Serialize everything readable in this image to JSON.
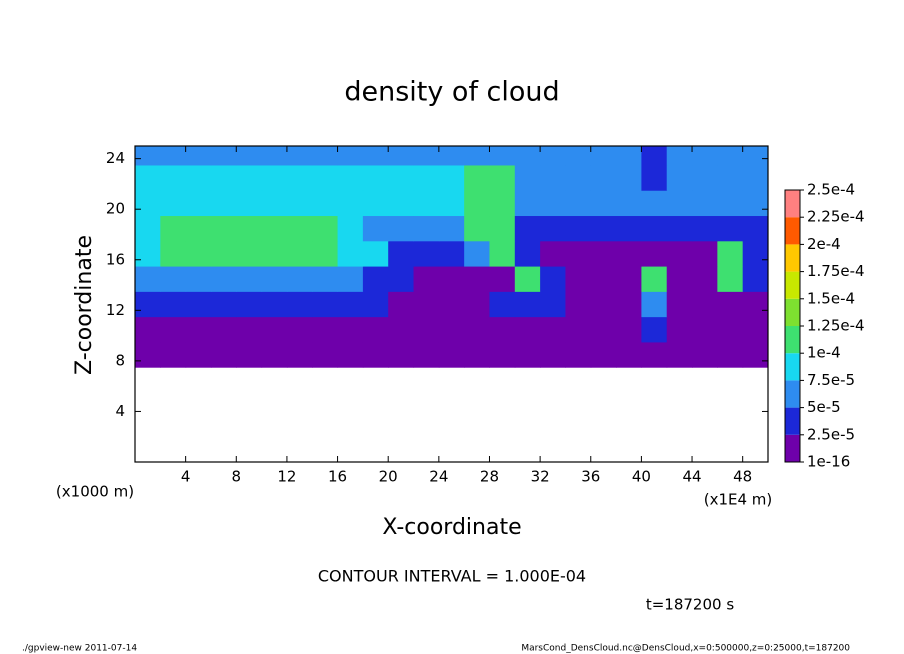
{
  "chart_data": {
    "type": "contour",
    "title": "density of cloud",
    "xlabel": "X-coordinate",
    "ylabel": "Z-coordinate",
    "x_unit": "(x1E4 m)",
    "y_unit": "(x1000 m)",
    "annotation": "CONTOUR INTERVAL = 1.000E-04",
    "time": "t=187200 s",
    "footer_left": "./gpview-new  2011-07-14",
    "footer_right": "MarsCond_DensCloud.nc@DensCloud,x=0:500000,z=0:25000,t=187200",
    "xlim": [
      0,
      50
    ],
    "ylim": [
      0,
      25
    ],
    "xticks": [
      4,
      8,
      12,
      16,
      20,
      24,
      28,
      32,
      36,
      40,
      44,
      48
    ],
    "yticks": [
      4,
      8,
      12,
      16,
      20,
      24
    ],
    "x": [
      1,
      3,
      5,
      7,
      9,
      11,
      13,
      15,
      17,
      19,
      21,
      23,
      25,
      27,
      29,
      31,
      33,
      35,
      37,
      39,
      41,
      43,
      45,
      47,
      49
    ],
    "y": [
      8.5,
      10.5,
      12.5,
      14.5,
      16.5,
      18.5,
      20.5,
      22.5,
      24.5
    ],
    "z": [
      [
        5e-06,
        5e-06,
        5e-06,
        5e-06,
        5e-06,
        5e-06,
        5e-06,
        5e-06,
        5e-06,
        5e-06,
        5e-06,
        5e-06,
        5e-06,
        5e-06,
        5e-06,
        1.5e-05,
        5e-06,
        5e-06,
        5e-06,
        1.5e-05,
        5e-06,
        5e-06,
        5e-06,
        5e-06,
        5e-06
      ],
      [
        5e-06,
        5e-06,
        5e-06,
        5e-06,
        5e-06,
        5e-06,
        5e-06,
        5e-06,
        5e-06,
        5e-06,
        5e-06,
        5e-06,
        5e-06,
        5e-06,
        2e-05,
        2e-05,
        2e-05,
        5e-06,
        5e-06,
        5e-06,
        3e-05,
        5e-06,
        5e-06,
        5e-06,
        5e-06
      ],
      [
        3.5e-05,
        3.5e-05,
        3.5e-05,
        3.5e-05,
        3.5e-05,
        3.5e-05,
        3.5e-05,
        3.5e-05,
        3.5e-05,
        3.5e-05,
        2e-05,
        2e-05,
        2e-05,
        2e-05,
        3e-05,
        3e-05,
        3e-05,
        1e-05,
        1e-05,
        1e-05,
        6e-05,
        1e-05,
        1e-05,
        1e-05,
        1e-05
      ],
      [
        7e-05,
        7e-05,
        7e-05,
        7e-05,
        7e-05,
        7e-05,
        7e-05,
        7e-05,
        7e-05,
        4e-05,
        4e-05,
        1e-05,
        1e-05,
        1e-05,
        1e-05,
        0.00011,
        3e-05,
        1e-05,
        1e-05,
        1e-05,
        0.000105,
        2e-05,
        2e-05,
        0.000105,
        3e-05
      ],
      [
        8e-05,
        0.000105,
        0.000105,
        0.000105,
        0.000105,
        0.000105,
        0.000105,
        0.000105,
        8e-05,
        8e-05,
        4e-05,
        4e-05,
        4e-05,
        6e-05,
        0.000105,
        3e-05,
        1e-05,
        1e-05,
        1e-05,
        1e-05,
        1e-05,
        1e-05,
        1e-05,
        0.000105,
        4e-05
      ],
      [
        8.5e-05,
        0.000105,
        0.000105,
        0.000105,
        0.000105,
        0.000105,
        0.000105,
        0.000105,
        8.5e-05,
        7e-05,
        7e-05,
        7e-05,
        7e-05,
        0.00011,
        0.00011,
        4.5e-05,
        4.5e-05,
        4.5e-05,
        4.5e-05,
        3e-05,
        3e-05,
        3e-05,
        3e-05,
        3e-05,
        3e-05
      ],
      [
        8.5e-05,
        8.5e-05,
        8.5e-05,
        9.5e-05,
        9.5e-05,
        9.5e-05,
        9.5e-05,
        9.5e-05,
        8e-05,
        8e-05,
        8e-05,
        8e-05,
        8e-05,
        0.000105,
        0.000105,
        7e-05,
        7e-05,
        7e-05,
        7e-05,
        7e-05,
        7e-05,
        7e-05,
        7e-05,
        7e-05,
        7e-05
      ],
      [
        8e-05,
        8e-05,
        8e-05,
        8e-05,
        8e-05,
        8e-05,
        8e-05,
        8e-05,
        8e-05,
        8e-05,
        8e-05,
        8e-05,
        8e-05,
        0.0001,
        0.0001,
        7e-05,
        7e-05,
        7e-05,
        7e-05,
        7e-05,
        4e-05,
        7e-05,
        7e-05,
        7e-05,
        7e-05
      ],
      [
        6.5e-05,
        6.5e-05,
        6.5e-05,
        6.5e-05,
        6.5e-05,
        6.5e-05,
        6.5e-05,
        6.5e-05,
        6.5e-05,
        6.5e-05,
        6.5e-05,
        6.5e-05,
        6.5e-05,
        6.5e-05,
        6.5e-05,
        6.5e-05,
        6.5e-05,
        6.5e-05,
        6.5e-05,
        6.5e-05,
        3e-05,
        6.5e-05,
        6.5e-05,
        6.5e-05,
        6.5e-05
      ]
    ],
    "colorbar": {
      "ticks": [
        1e-16,
        {
          "value": 2.5e-05,
          "label": "2.5e-5"
        },
        {
          "value": 5e-05,
          "label": "5e-5"
        },
        {
          "value": 7.5e-05,
          "label": "7.5e-5"
        },
        {
          "value": 0.0001,
          "label": "1e-4"
        },
        {
          "value": 0.000125,
          "label": "1.25e-4"
        },
        {
          "value": 0.00015,
          "label": "1.5e-4"
        },
        {
          "value": 0.000175,
          "label": "1.75e-4"
        },
        {
          "value": 0.0002,
          "label": "2e-4"
        },
        {
          "value": 0.000225,
          "label": "2.25e-4"
        },
        {
          "value": 0.00025,
          "label": "2.5e-4"
        }
      ],
      "colors": [
        "#6e00aa",
        "#1c28d8",
        "#2e8cf0",
        "#18d8f0",
        "#3ee070",
        "#7ee030",
        "#c8e800",
        "#ffc800",
        "#ff5a00",
        "#ff8080"
      ]
    }
  }
}
